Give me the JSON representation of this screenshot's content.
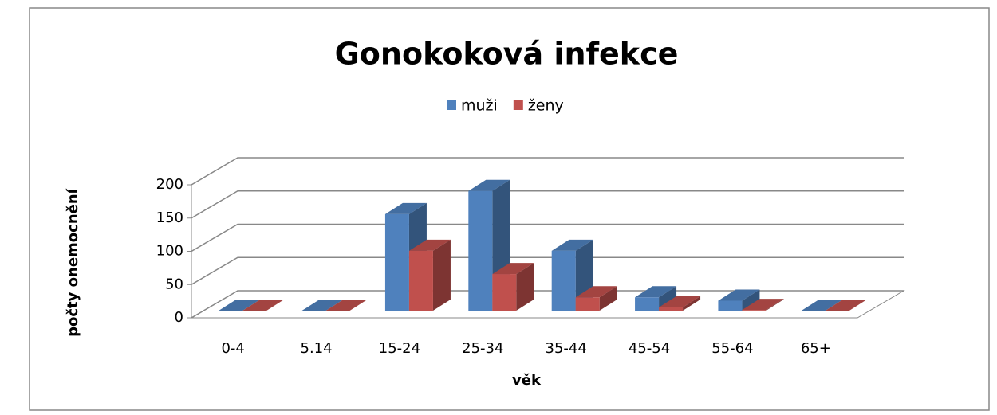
{
  "chart_data": {
    "type": "bar3d",
    "title": "Gonokoková infekce",
    "categories": [
      "0-4",
      "5.14",
      "15-24",
      "25-34",
      "35-44",
      "45-54",
      "55-64",
      "65+"
    ],
    "series": [
      {
        "name": "muži",
        "color": "#4f81bd",
        "values": [
          0,
          0,
          145,
          180,
          90,
          20,
          15,
          0
        ]
      },
      {
        "name": "ženy",
        "color": "#c0504d",
        "values": [
          0,
          0,
          90,
          55,
          20,
          5,
          1,
          0
        ]
      }
    ],
    "x_label": "věk",
    "y_label": "počty onemocnění",
    "ylim": [
      0,
      200
    ],
    "yticks": [
      0,
      50,
      100,
      150,
      200
    ],
    "grid": true,
    "legend": "top"
  }
}
